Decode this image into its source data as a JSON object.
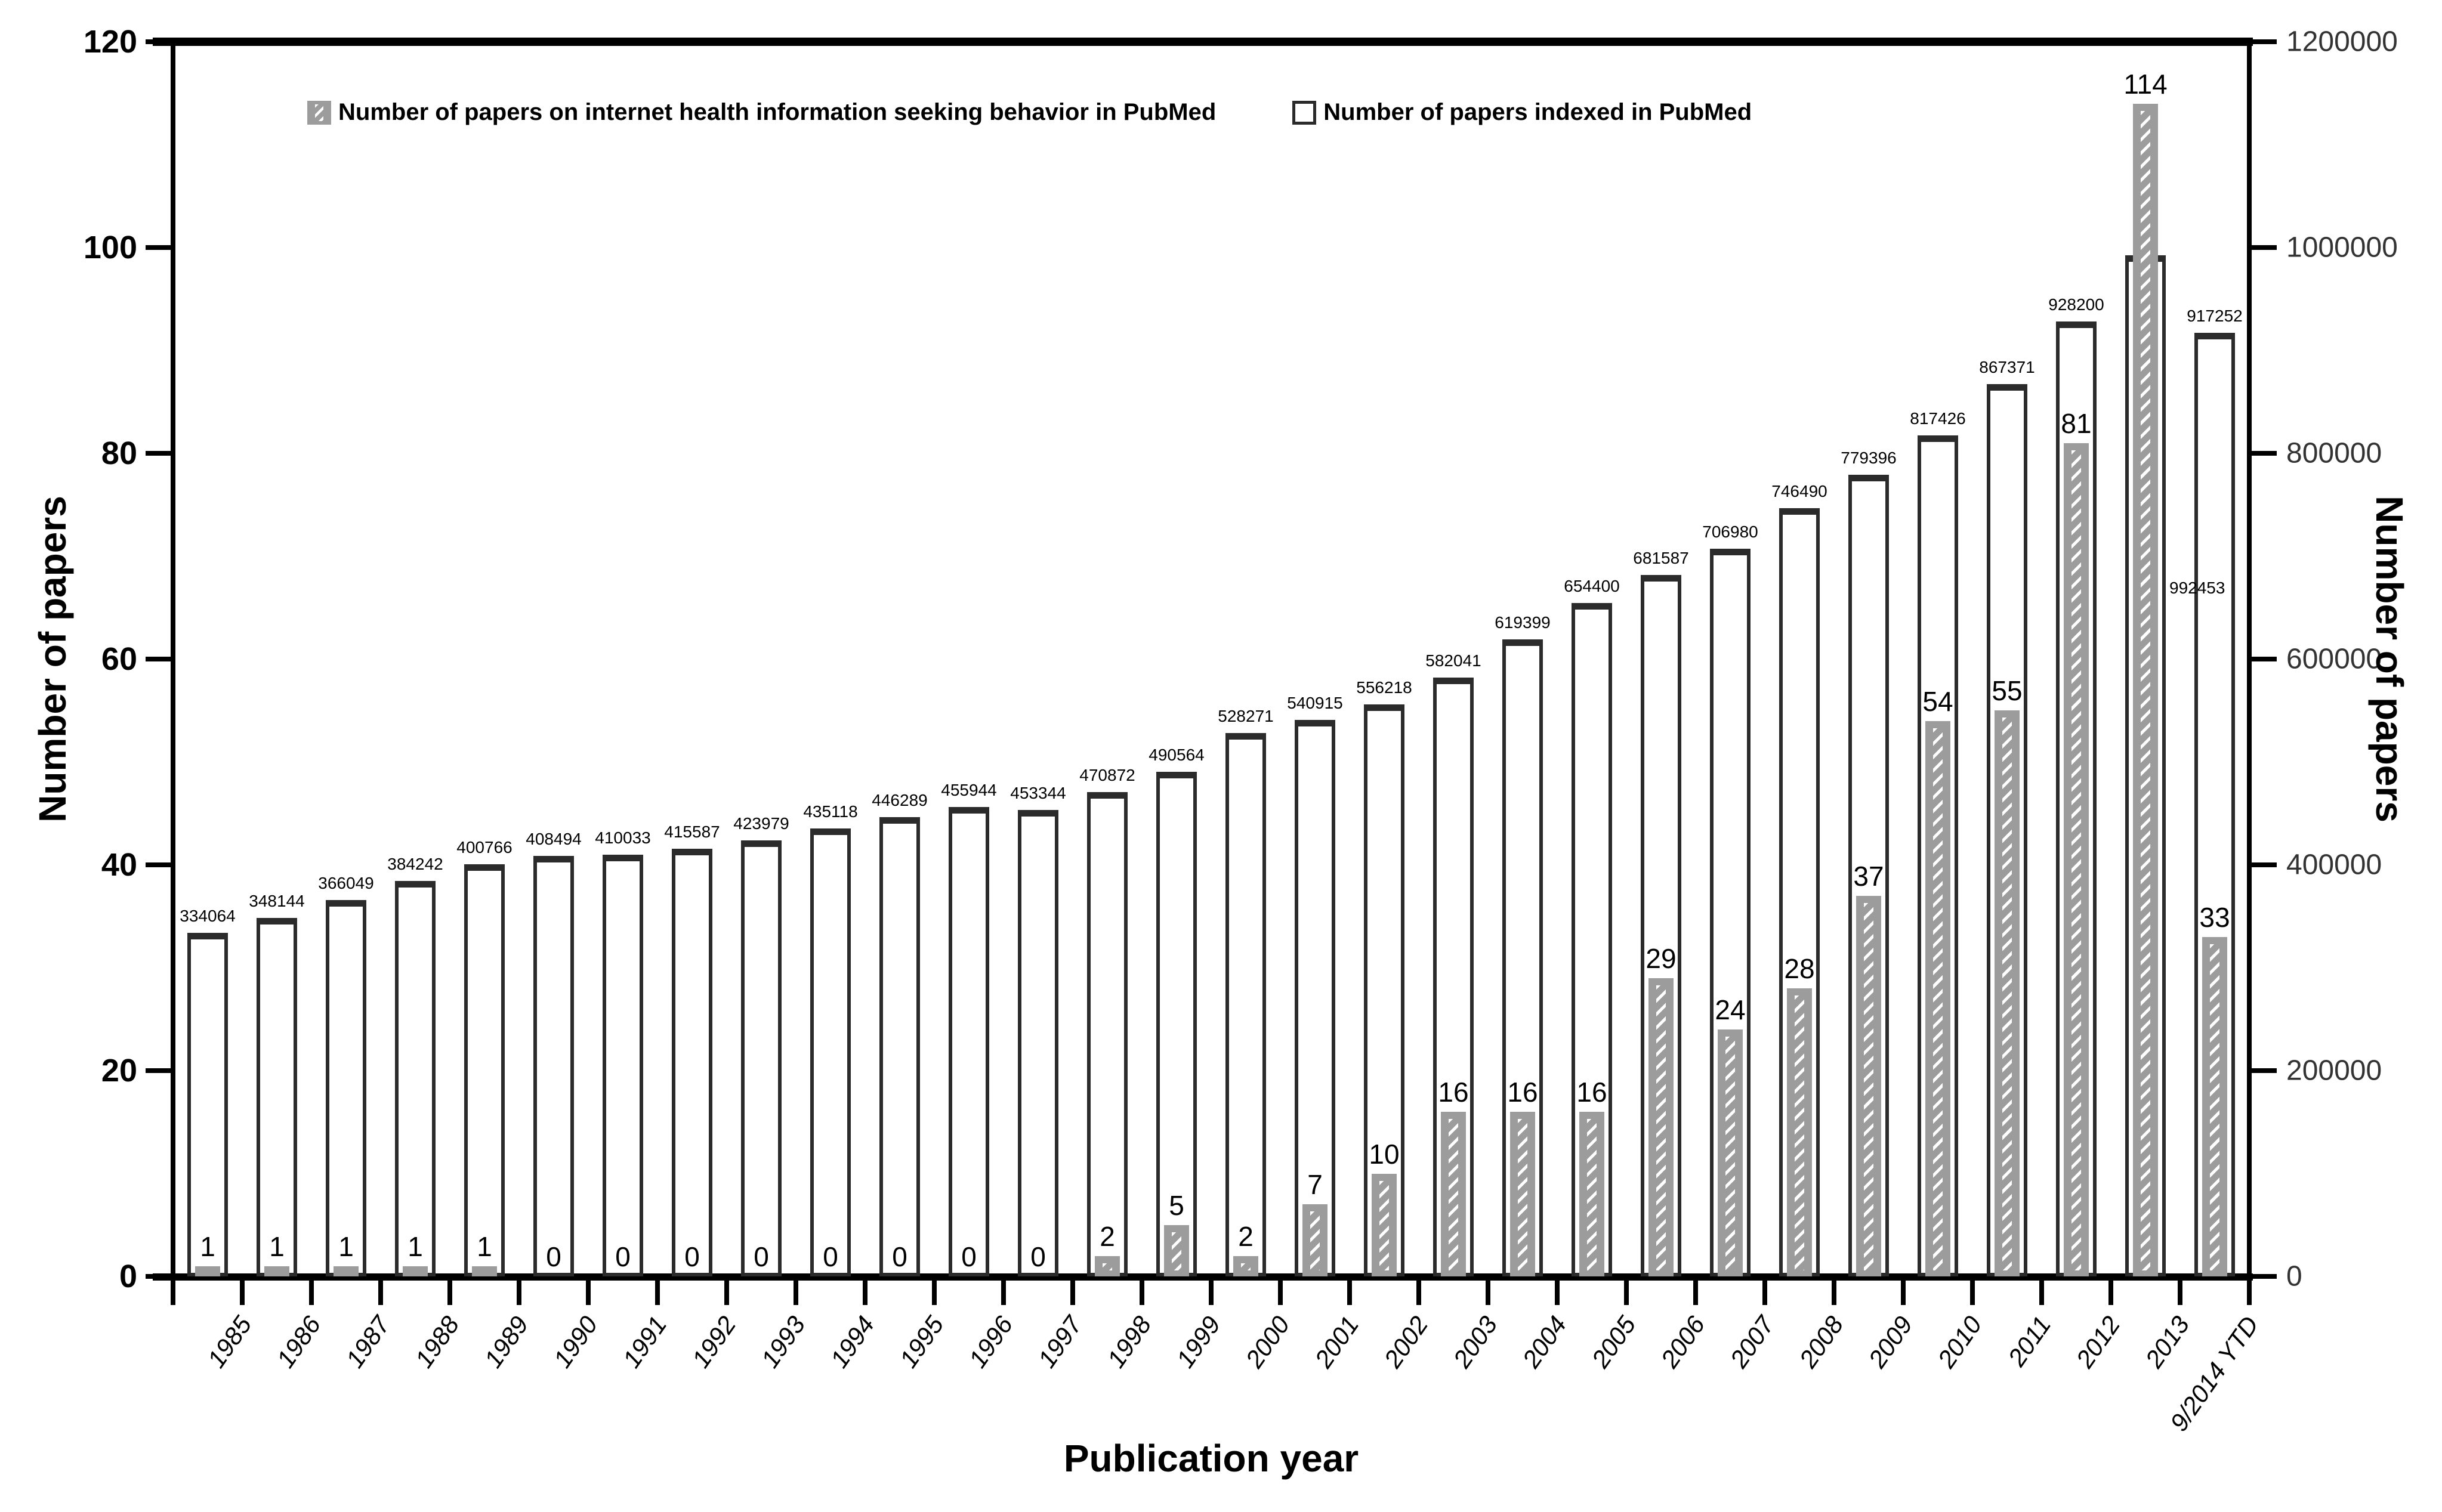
{
  "chart_data": {
    "type": "bar",
    "title": "",
    "xlabel": "Publication year",
    "ylabel_left": "Number of papers",
    "ylabel_right": "Number of papers",
    "legend_position": "top",
    "grid": false,
    "categories": [
      "1985",
      "1986",
      "1987",
      "1988",
      "1989",
      "1990",
      "1991",
      "1992",
      "1993",
      "1994",
      "1995",
      "1996",
      "1997",
      "1998",
      "1999",
      "2000",
      "2001",
      "2002",
      "2003",
      "2004",
      "2005",
      "2006",
      "2007",
      "2008",
      "2009",
      "2010",
      "2011",
      "2012",
      "2013",
      "9/2014 YTD"
    ],
    "series": [
      {
        "name": "Number of papers on internet health information seeking behavior in PubMed",
        "axis": "left",
        "style": "gray-hatched",
        "values": [
          1,
          1,
          1,
          1,
          1,
          0,
          0,
          0,
          0,
          0,
          0,
          0,
          0,
          2,
          5,
          2,
          7,
          10,
          16,
          16,
          16,
          29,
          24,
          28,
          37,
          54,
          55,
          81,
          114,
          33
        ]
      },
      {
        "name": "Number of papers indexed in PubMed",
        "axis": "right",
        "style": "white-outlined",
        "values": [
          334064,
          348144,
          366049,
          384242,
          400766,
          408494,
          410033,
          415587,
          423979,
          435118,
          446289,
          455944,
          453344,
          470872,
          490564,
          528271,
          540915,
          556218,
          582041,
          619399,
          654400,
          681587,
          706980,
          746490,
          779396,
          817426,
          867371,
          928200,
          992453,
          917252
        ]
      }
    ],
    "left_axis": {
      "min": 0,
      "max": 120,
      "ticks": [
        0,
        20,
        40,
        60,
        80,
        100,
        120
      ]
    },
    "right_axis": {
      "min": 0,
      "max": 1200000,
      "ticks": [
        0,
        200000,
        400000,
        600000,
        800000,
        1000000,
        1200000
      ]
    },
    "colors": {
      "gray_bar": "#9c9c9c",
      "white_bar": "#ffffff",
      "outline": "#2b2b2b",
      "axis": "#000000"
    }
  }
}
